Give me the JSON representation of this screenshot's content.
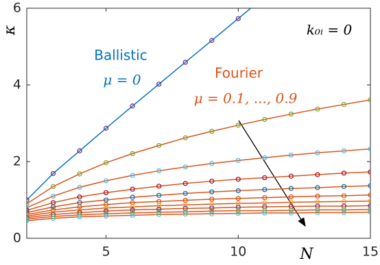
{
  "chart_data": {
    "type": "line",
    "x": [
      2,
      3,
      4,
      5,
      6,
      7,
      8,
      9,
      10,
      11,
      12,
      13,
      14,
      15
    ],
    "series": [
      {
        "color": "#0072bd",
        "marker_color": "#7e2f8e",
        "values": [
          1.0,
          1.69,
          2.28,
          2.87,
          3.45,
          4.02,
          4.59,
          5.16,
          5.73,
          6.3,
          null,
          null,
          null,
          null
        ]
      },
      {
        "color": "#d95319",
        "marker_color": "#77ac30",
        "values": [
          0.9,
          1.35,
          1.68,
          1.97,
          2.21,
          2.42,
          2.62,
          2.79,
          2.95,
          3.1,
          3.24,
          3.37,
          3.49,
          3.61
        ]
      },
      {
        "color": "#d95319",
        "marker_color": "#4dbeee",
        "values": [
          0.8,
          1.1,
          1.33,
          1.5,
          1.64,
          1.76,
          1.86,
          1.95,
          2.03,
          2.1,
          2.17,
          2.23,
          2.28,
          2.33
        ]
      },
      {
        "color": "#d95319",
        "marker_color": "#a2142f",
        "values": [
          0.73,
          0.93,
          1.08,
          1.19,
          1.28,
          1.36,
          1.43,
          1.49,
          1.54,
          1.58,
          1.62,
          1.66,
          1.7,
          1.73
        ]
      },
      {
        "color": "#d95319",
        "marker_color": "#0072bd",
        "values": [
          0.67,
          0.82,
          0.93,
          1.0,
          1.07,
          1.12,
          1.17,
          1.21,
          1.24,
          1.27,
          1.3,
          1.32,
          1.35,
          1.37
        ]
      },
      {
        "color": "#d95319",
        "marker_color": "#d95319",
        "values": [
          0.62,
          0.74,
          0.82,
          0.88,
          0.93,
          0.96,
          0.99,
          1.02,
          1.04,
          1.06,
          1.08,
          1.1,
          1.11,
          1.13
        ]
      },
      {
        "color": "#d95319",
        "marker_color": "#edb120",
        "values": [
          0.58,
          0.68,
          0.74,
          0.79,
          0.82,
          0.85,
          0.87,
          0.89,
          0.91,
          0.92,
          0.94,
          0.95,
          0.96,
          0.97
        ]
      },
      {
        "color": "#d95319",
        "marker_color": "#7e2f8e",
        "values": [
          0.54,
          0.62,
          0.67,
          0.71,
          0.74,
          0.76,
          0.78,
          0.79,
          0.81,
          0.82,
          0.83,
          0.84,
          0.84,
          0.85
        ]
      },
      {
        "color": "#d95319",
        "marker_color": "#77ac30",
        "values": [
          0.5,
          0.57,
          0.61,
          0.64,
          0.66,
          0.68,
          0.69,
          0.71,
          0.72,
          0.72,
          0.73,
          0.74,
          0.74,
          0.75
        ]
      },
      {
        "color": "#d95319",
        "marker_color": "#4dbeee",
        "values": [
          0.46,
          0.52,
          0.56,
          0.58,
          0.6,
          0.62,
          0.63,
          0.64,
          0.65,
          0.66,
          0.66,
          0.67,
          0.67,
          0.68
        ]
      }
    ],
    "xlim": [
      2,
      15
    ],
    "xticks": [
      5,
      10,
      15
    ],
    "ylim": [
      0,
      6
    ],
    "yticks": [
      0,
      2,
      4,
      6
    ],
    "xlabel": "N",
    "ylabel": "κ",
    "annotations": {
      "ballistic": "Ballistic",
      "ballistic_mu": "μ = 0",
      "fourier": "Fourier",
      "fourier_mu": "μ = 0.1, ..., 0.9",
      "condition": "k₀ᵢ = 0"
    }
  }
}
